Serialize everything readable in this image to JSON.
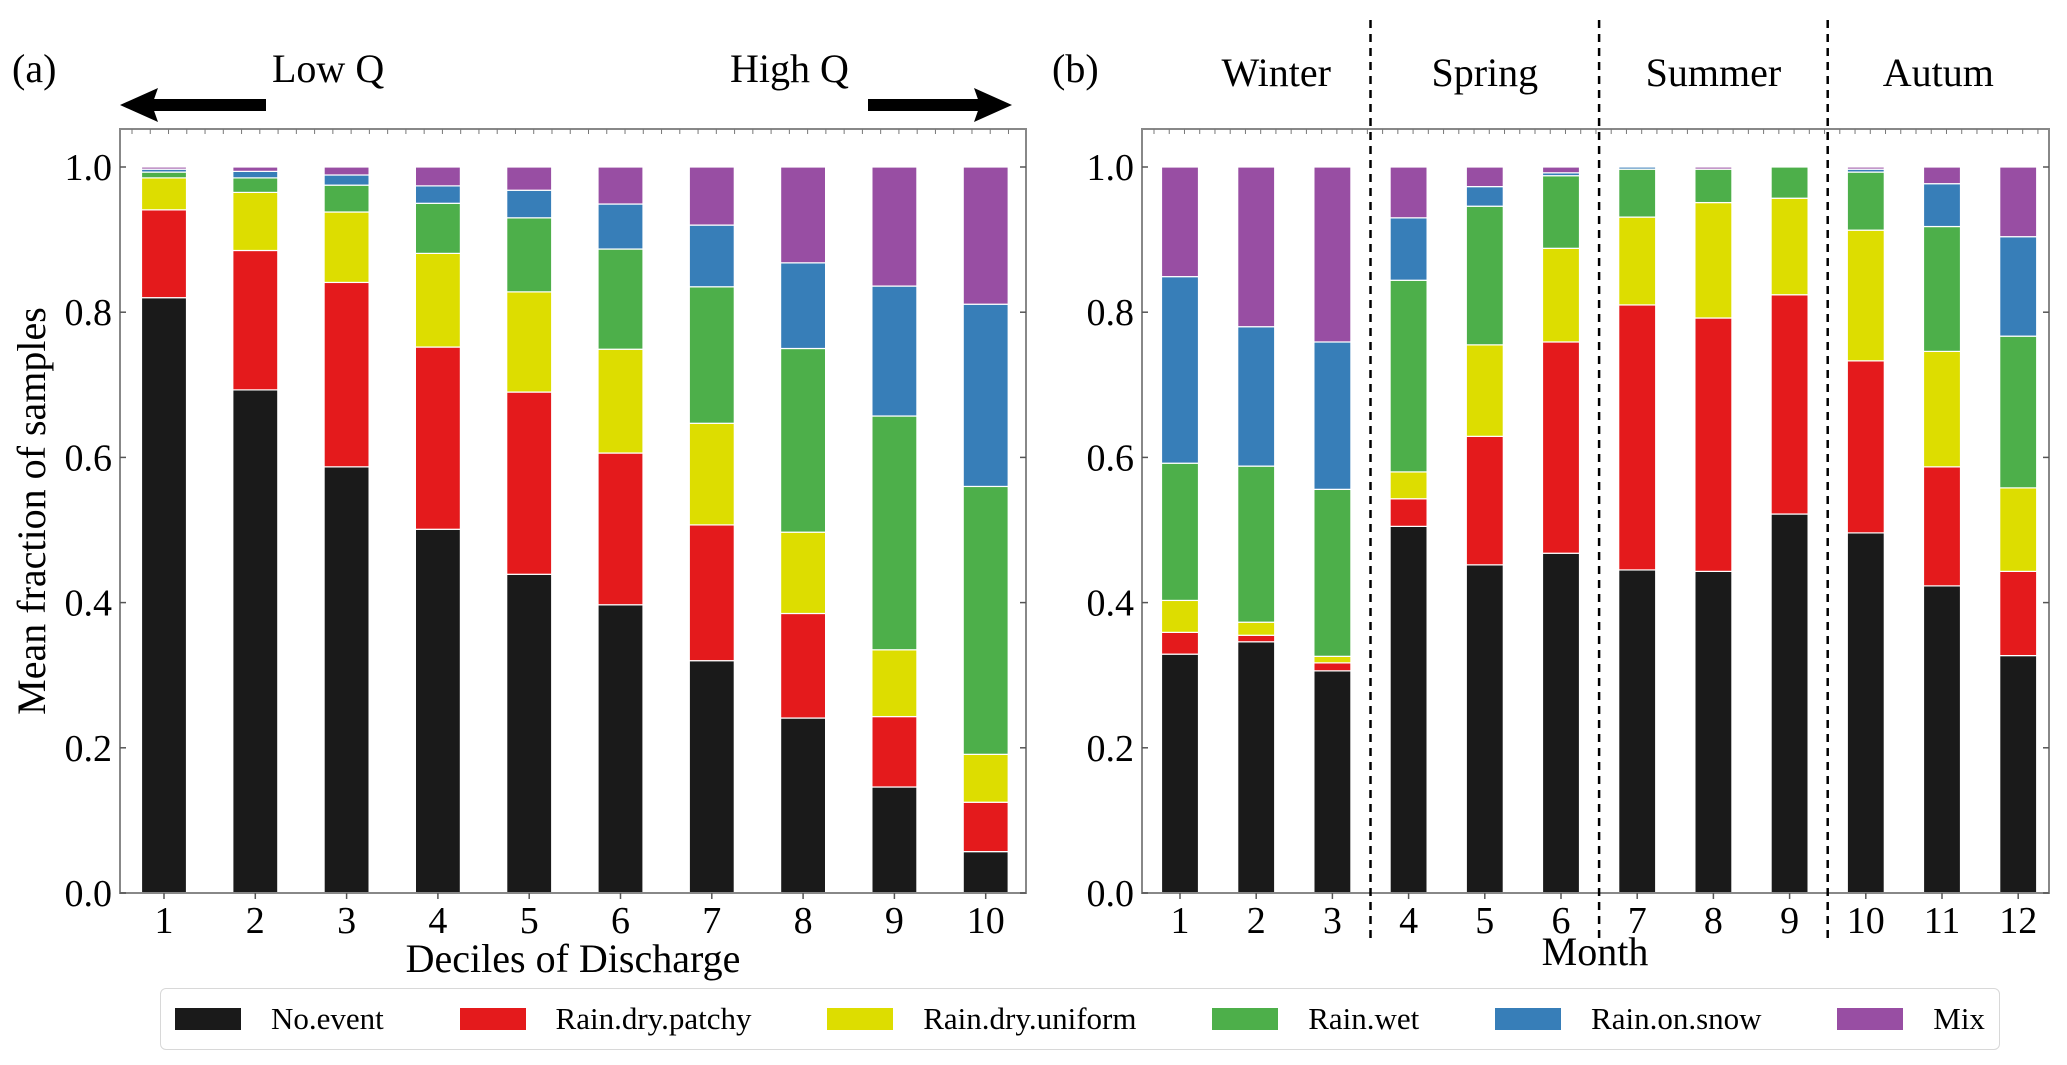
{
  "chart_data": [
    {
      "type": "bar",
      "stacked": true,
      "panel_label": "(a)",
      "title": "",
      "annotations": [
        "Low Q",
        "High Q"
      ],
      "xlabel": "Deciles of Discharge",
      "ylabel": "Mean fraction of samples",
      "ylim": [
        0,
        1.05
      ],
      "yticks": [
        "0.0",
        "0.2",
        "0.4",
        "0.6",
        "0.8",
        "1.0"
      ],
      "categories": [
        "1",
        "2",
        "3",
        "4",
        "5",
        "6",
        "7",
        "8",
        "9",
        "10"
      ],
      "series": [
        {
          "name": "No.event",
          "values": [
            0.82,
            0.693,
            0.587,
            0.501,
            0.439,
            0.397,
            0.32,
            0.241,
            0.146,
            0.057
          ]
        },
        {
          "name": "Rain.dry.patchy",
          "values": [
            0.121,
            0.192,
            0.254,
            0.251,
            0.251,
            0.209,
            0.187,
            0.144,
            0.097,
            0.068
          ]
        },
        {
          "name": "Rain.dry.uniform",
          "values": [
            0.044,
            0.08,
            0.097,
            0.129,
            0.138,
            0.143,
            0.14,
            0.112,
            0.092,
            0.066
          ]
        },
        {
          "name": "Rain.wet",
          "values": [
            0.008,
            0.02,
            0.037,
            0.069,
            0.102,
            0.138,
            0.188,
            0.253,
            0.322,
            0.369
          ]
        },
        {
          "name": "Rain.on.snow",
          "values": [
            0.004,
            0.009,
            0.014,
            0.024,
            0.038,
            0.062,
            0.085,
            0.118,
            0.179,
            0.251
          ]
        },
        {
          "name": "Mix",
          "values": [
            0.003,
            0.006,
            0.011,
            0.026,
            0.032,
            0.051,
            0.08,
            0.132,
            0.164,
            0.189
          ]
        }
      ]
    },
    {
      "type": "bar",
      "stacked": true,
      "panel_label": "(b)",
      "title": "",
      "season_labels": [
        "Winter",
        "Spring",
        "Summer",
        "Autum"
      ],
      "season_dividers_after": [
        "3",
        "6",
        "9"
      ],
      "xlabel": "Month",
      "ylabel": "",
      "ylim": [
        0,
        1.05
      ],
      "yticks": [
        "0.0",
        "0.2",
        "0.4",
        "0.6",
        "0.8",
        "1.0"
      ],
      "categories": [
        "1",
        "2",
        "3",
        "4",
        "5",
        "6",
        "7",
        "8",
        "9",
        "10",
        "11",
        "12"
      ],
      "series": [
        {
          "name": "No.event",
          "values": [
            0.329,
            0.346,
            0.306,
            0.505,
            0.452,
            0.468,
            0.445,
            0.443,
            0.522,
            0.496,
            0.423,
            0.327
          ]
        },
        {
          "name": "Rain.dry.patchy",
          "values": [
            0.03,
            0.009,
            0.011,
            0.038,
            0.177,
            0.291,
            0.365,
            0.349,
            0.302,
            0.237,
            0.164,
            0.116
          ]
        },
        {
          "name": "Rain.dry.uniform",
          "values": [
            0.044,
            0.018,
            0.009,
            0.037,
            0.126,
            0.129,
            0.121,
            0.159,
            0.133,
            0.18,
            0.159,
            0.115
          ]
        },
        {
          "name": "Rain.wet",
          "values": [
            0.189,
            0.215,
            0.23,
            0.264,
            0.191,
            0.1,
            0.066,
            0.046,
            0.043,
            0.08,
            0.172,
            0.209
          ]
        },
        {
          "name": "Rain.on.snow",
          "values": [
            0.257,
            0.192,
            0.203,
            0.086,
            0.027,
            0.004,
            0.003,
            0.0,
            0.0,
            0.004,
            0.059,
            0.137
          ]
        },
        {
          "name": "Mix",
          "values": [
            0.151,
            0.22,
            0.241,
            0.07,
            0.027,
            0.008,
            0.0,
            0.003,
            0.0,
            0.003,
            0.023,
            0.096
          ]
        }
      ]
    }
  ],
  "legend": {
    "placement": "bottom",
    "items": [
      {
        "label": "No.event",
        "color": "#1a1a1a"
      },
      {
        "label": "Rain.dry.patchy",
        "color": "#e41a1c"
      },
      {
        "label": "Rain.dry.uniform",
        "color": "#dddd00"
      },
      {
        "label": "Rain.wet",
        "color": "#4daf4a"
      },
      {
        "label": "Rain.on.snow",
        "color": "#377eb8"
      },
      {
        "label": "Mix",
        "color": "#984ea3"
      }
    ]
  }
}
